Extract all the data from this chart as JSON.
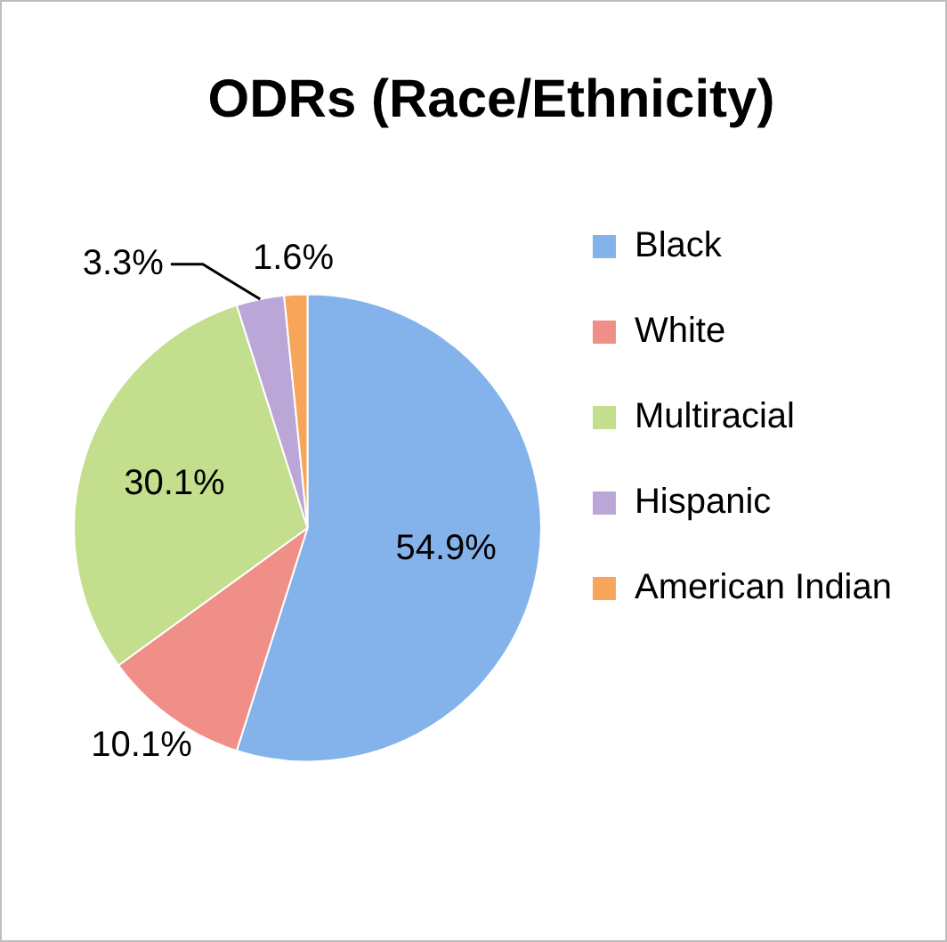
{
  "chart_data": {
    "type": "pie",
    "title": "ODRs (Race/Ethnicity)",
    "categories": [
      "Black",
      "White",
      "Multiracial",
      "Hispanic",
      "American Indian"
    ],
    "values": [
      54.9,
      10.1,
      30.1,
      3.3,
      1.6
    ],
    "colors": [
      "#84b2ea",
      "#f08e88",
      "#c3de8c",
      "#bba6d8",
      "#f8a55c"
    ],
    "value_labels": [
      "54.9%",
      "10.1%",
      "30.1%",
      "3.3%",
      "1.6%"
    ],
    "legend": "right"
  }
}
